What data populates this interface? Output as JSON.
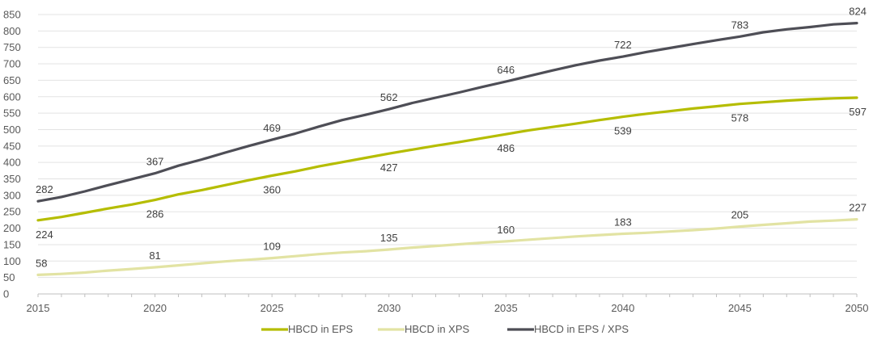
{
  "chart_data": {
    "type": "line",
    "title": "",
    "xlabel": "",
    "ylabel": "",
    "xlim": [
      2015,
      2050
    ],
    "ylim": [
      0,
      850
    ],
    "x_ticks": [
      2015,
      2020,
      2025,
      2030,
      2035,
      2040,
      2045,
      2050
    ],
    "y_ticks": [
      0,
      50,
      100,
      150,
      200,
      250,
      300,
      350,
      400,
      450,
      500,
      550,
      600,
      650,
      700,
      750,
      800,
      850
    ],
    "grid": "horizontal",
    "legend_position": "bottom",
    "x": [
      2015,
      2016,
      2017,
      2018,
      2019,
      2020,
      2021,
      2022,
      2023,
      2024,
      2025,
      2026,
      2027,
      2028,
      2029,
      2030,
      2031,
      2032,
      2033,
      2034,
      2035,
      2036,
      2037,
      2038,
      2039,
      2040,
      2041,
      2042,
      2043,
      2044,
      2045,
      2046,
      2047,
      2048,
      2049,
      2050
    ],
    "series": [
      {
        "name": "HBCD in EPS",
        "color": "#b5bd00",
        "values": [
          224,
          234,
          247,
          260,
          272,
          286,
          303,
          316,
          331,
          346,
          360,
          373,
          388,
          401,
          414,
          427,
          439,
          451,
          462,
          474,
          486,
          498,
          508,
          518,
          529,
          539,
          548,
          556,
          564,
          571,
          578,
          583,
          588,
          592,
          595,
          597
        ],
        "labels": [
          [
            2015,
            224
          ],
          [
            2020,
            286
          ],
          [
            2025,
            360
          ],
          [
            2030,
            427
          ],
          [
            2035,
            486
          ],
          [
            2040,
            539
          ],
          [
            2045,
            578
          ],
          [
            2050,
            597
          ]
        ],
        "label_side": "below"
      },
      {
        "name": "HBCD in XPS",
        "color": "#e2e3a3",
        "values": [
          58,
          61,
          65,
          71,
          76,
          81,
          87,
          93,
          99,
          104,
          109,
          115,
          121,
          126,
          130,
          135,
          141,
          146,
          151,
          156,
          160,
          165,
          170,
          175,
          179,
          183,
          186,
          190,
          194,
          199,
          205,
          210,
          215,
          220,
          223,
          227
        ],
        "labels": [
          [
            2015,
            58
          ],
          [
            2020,
            81
          ],
          [
            2025,
            109
          ],
          [
            2030,
            135
          ],
          [
            2035,
            160
          ],
          [
            2040,
            183
          ],
          [
            2045,
            205
          ],
          [
            2050,
            227
          ]
        ],
        "label_side": "above"
      },
      {
        "name": "HBCD in EPS / XPS",
        "color": "#4e4e56",
        "values": [
          282,
          295,
          312,
          331,
          349,
          367,
          390,
          409,
          430,
          450,
          469,
          488,
          509,
          529,
          545,
          562,
          581,
          597,
          613,
          630,
          646,
          663,
          680,
          696,
          710,
          722,
          736,
          748,
          760,
          772,
          783,
          796,
          805,
          812,
          820,
          824
        ],
        "labels": [
          [
            2015,
            282
          ],
          [
            2020,
            367
          ],
          [
            2025,
            469
          ],
          [
            2030,
            562
          ],
          [
            2035,
            646
          ],
          [
            2040,
            722
          ],
          [
            2045,
            783
          ],
          [
            2050,
            824
          ]
        ],
        "label_side": "above"
      }
    ]
  }
}
